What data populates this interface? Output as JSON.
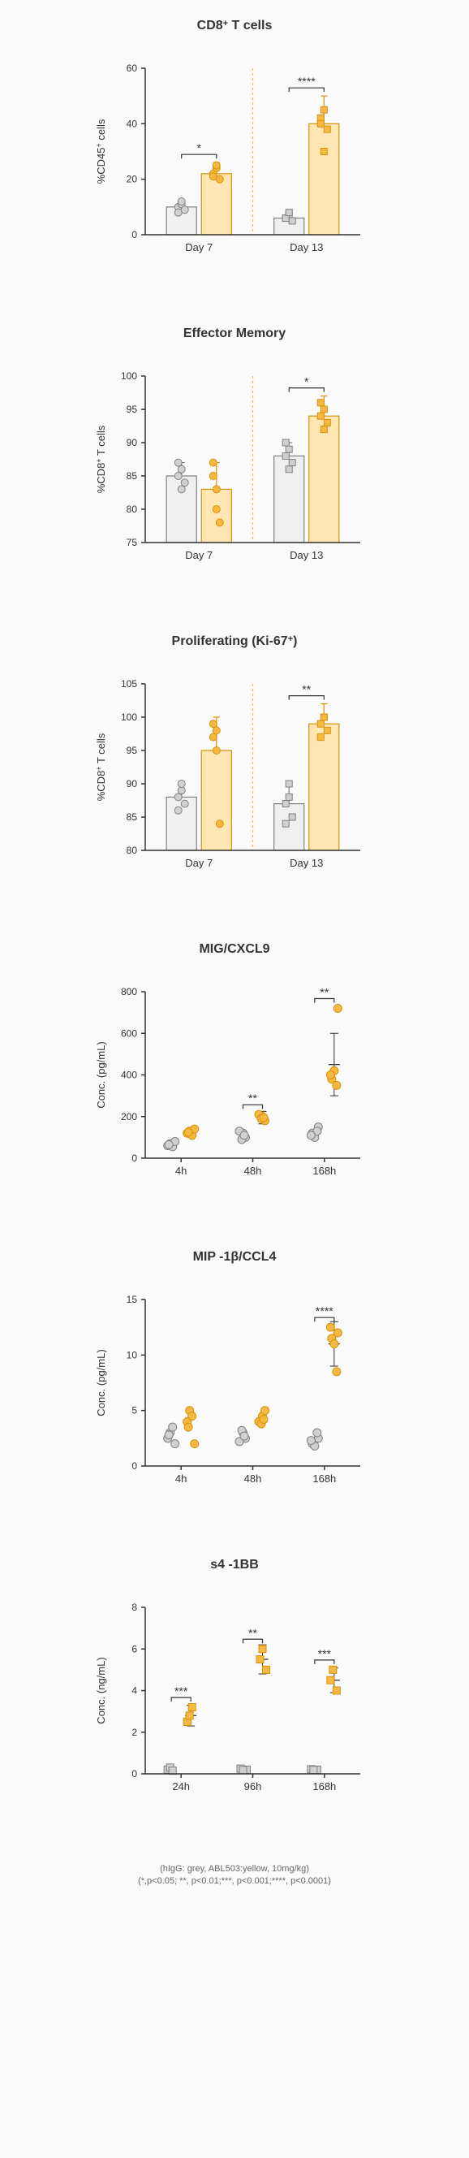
{
  "colors": {
    "grey_fill": "#d0d0d0",
    "grey_stroke": "#808080",
    "yellow_fill": "#f5b942",
    "yellow_stroke": "#d9920a",
    "yellow_fill_light": "#ffe6b3",
    "axis": "#333333",
    "sep_line": "#f5b942",
    "text": "#333333",
    "grid": "#cccccc",
    "bar_stroke_grey": "#808080",
    "bar_stroke_yellow": "#d9920a"
  },
  "caption_line1": "(hIgG: grey, ABL503:yellow, 10mg/kg)",
  "caption_line2": "(*,p<0.05; **, p<0.01;***, p<0.001;****, p<0.0001)",
  "charts": [
    {
      "id": "cd8",
      "type": "grouped-bar-scatter",
      "title_html": "CD8<tspan baseline-shift='4' font-size='11'>+</tspan> T cells",
      "ylabel_html": "%CD45<tspan baseline-shift='4' font-size='9'>+</tspan> cells",
      "ylim": [
        0,
        60
      ],
      "ytick_step": 20,
      "categories": [
        "Day 7",
        "Day 13"
      ],
      "bar_means": {
        "grey": [
          10,
          6
        ],
        "yellow": [
          22,
          40
        ]
      },
      "bar_err": {
        "grey": [
          2,
          2
        ],
        "yellow": [
          4,
          10
        ]
      },
      "points": {
        "grey_circles": [
          [
            0,
            10
          ],
          [
            0,
            11
          ],
          [
            0,
            9
          ],
          [
            0,
            8
          ],
          [
            0,
            12
          ]
        ],
        "yellow_circles": [
          [
            0,
            22
          ],
          [
            0,
            24
          ],
          [
            0,
            20
          ],
          [
            0,
            21
          ],
          [
            0,
            25
          ]
        ],
        "grey_squares": [
          [
            1,
            6
          ],
          [
            1,
            7
          ],
          [
            1,
            5
          ],
          [
            1,
            6
          ],
          [
            1,
            8
          ]
        ],
        "yellow_squares": [
          [
            1,
            42
          ],
          [
            1,
            45
          ],
          [
            1,
            38
          ],
          [
            1,
            40
          ],
          [
            1,
            30
          ]
        ]
      },
      "sigs": [
        {
          "cat": 0,
          "label": "*"
        },
        {
          "cat": 1,
          "label": "****"
        }
      ],
      "sep": true
    },
    {
      "id": "effmem",
      "type": "grouped-bar-scatter",
      "title": "Effector Memory",
      "ylabel_html": "%CD8<tspan baseline-shift='4' font-size='9'>+</tspan> T cells",
      "ylim": [
        75,
        100
      ],
      "ytick_step": 5,
      "categories": [
        "Day 7",
        "Day 13"
      ],
      "bar_means": {
        "grey": [
          85,
          88
        ],
        "yellow": [
          83,
          94
        ]
      },
      "bar_err": {
        "grey": [
          2,
          2
        ],
        "yellow": [
          4,
          3
        ]
      },
      "points": {
        "grey_circles": [
          [
            0,
            85
          ],
          [
            0,
            86
          ],
          [
            0,
            84
          ],
          [
            0,
            87
          ],
          [
            0,
            83
          ]
        ],
        "yellow_circles": [
          [
            0,
            85
          ],
          [
            0,
            80
          ],
          [
            0,
            78
          ],
          [
            0,
            87
          ],
          [
            0,
            83
          ]
        ],
        "grey_squares": [
          [
            1,
            88
          ],
          [
            1,
            89
          ],
          [
            1,
            87
          ],
          [
            1,
            90
          ],
          [
            1,
            86
          ]
        ],
        "yellow_squares": [
          [
            1,
            94
          ],
          [
            1,
            95
          ],
          [
            1,
            93
          ],
          [
            1,
            96
          ],
          [
            1,
            92
          ]
        ]
      },
      "sigs": [
        {
          "cat": 1,
          "label": "*"
        }
      ],
      "sep": true
    },
    {
      "id": "ki67",
      "type": "grouped-bar-scatter",
      "title_html": "Proliferating (Ki-67<tspan baseline-shift='4' font-size='11'>+</tspan>)",
      "ylabel_html": "%CD8<tspan baseline-shift='4' font-size='9'>+</tspan> T cells",
      "ylim": [
        80,
        105
      ],
      "ytick_step": 5,
      "categories": [
        "Day 7",
        "Day 13"
      ],
      "bar_means": {
        "grey": [
          88,
          87
        ],
        "yellow": [
          95,
          99
        ]
      },
      "bar_err": {
        "grey": [
          2,
          3
        ],
        "yellow": [
          5,
          3
        ]
      },
      "points": {
        "grey_circles": [
          [
            0,
            88
          ],
          [
            0,
            89
          ],
          [
            0,
            87
          ],
          [
            0,
            86
          ],
          [
            0,
            90
          ]
        ],
        "yellow_circles": [
          [
            0,
            97
          ],
          [
            0,
            95
          ],
          [
            0,
            84
          ],
          [
            0,
            99
          ],
          [
            0,
            98
          ]
        ],
        "grey_squares": [
          [
            1,
            87
          ],
          [
            1,
            88
          ],
          [
            1,
            85
          ],
          [
            1,
            84
          ],
          [
            1,
            90
          ]
        ],
        "yellow_squares": [
          [
            1,
            99
          ],
          [
            1,
            100
          ],
          [
            1,
            98
          ],
          [
            1,
            97
          ],
          [
            1,
            100
          ]
        ]
      },
      "sigs": [
        {
          "cat": 1,
          "label": "**"
        }
      ],
      "sep": true
    },
    {
      "id": "mig",
      "type": "scatter-grouped",
      "title": "MIG/CXCL9",
      "ylabel": "Conc. (pg/mL)",
      "ylim": [
        0,
        800
      ],
      "ytick_step": 200,
      "categories": [
        "4h",
        "48h",
        "168h"
      ],
      "points": {
        "grey": [
          [
            0,
            60
          ],
          [
            0,
            70
          ],
          [
            0,
            55
          ],
          [
            0,
            80
          ],
          [
            0,
            65
          ],
          [
            1,
            120
          ],
          [
            1,
            100
          ],
          [
            1,
            130
          ],
          [
            1,
            90
          ],
          [
            1,
            110
          ],
          [
            2,
            150
          ],
          [
            2,
            120
          ],
          [
            2,
            100
          ],
          [
            2,
            130
          ],
          [
            2,
            110
          ]
        ],
        "yellow": [
          [
            0,
            120
          ],
          [
            0,
            130
          ],
          [
            0,
            110
          ],
          [
            0,
            140
          ],
          [
            0,
            125
          ],
          [
            1,
            200
          ],
          [
            1,
            180
          ],
          [
            1,
            210
          ],
          [
            1,
            190
          ],
          [
            1,
            195
          ],
          [
            2,
            720
          ],
          [
            2,
            380
          ],
          [
            2,
            420
          ],
          [
            2,
            350
          ],
          [
            2,
            400
          ]
        ]
      },
      "err_yellow": [
        [
          1,
          195,
          30
        ],
        [
          2,
          450,
          150
        ]
      ],
      "sigs": [
        {
          "cat": 1,
          "label": "**"
        },
        {
          "cat": 2,
          "label": "**"
        }
      ]
    },
    {
      "id": "mip",
      "type": "scatter-grouped",
      "title": "MIP -1β/CCL4",
      "ylabel": "Conc. (pg/mL)",
      "ylim": [
        0,
        15
      ],
      "ytick_step": 5,
      "categories": [
        "4h",
        "48h",
        "168h"
      ],
      "points": {
        "grey": [
          [
            0,
            2.5
          ],
          [
            0,
            3
          ],
          [
            0,
            3.5
          ],
          [
            0,
            2
          ],
          [
            0,
            2.8
          ],
          [
            1,
            3
          ],
          [
            1,
            2.5
          ],
          [
            1,
            2.2
          ],
          [
            1,
            3.2
          ],
          [
            1,
            2.7
          ],
          [
            2,
            2.5
          ],
          [
            2,
            2
          ],
          [
            2,
            1.8
          ],
          [
            2,
            3
          ],
          [
            2,
            2.3
          ]
        ],
        "yellow": [
          [
            0,
            4
          ],
          [
            0,
            5
          ],
          [
            0,
            4.5
          ],
          [
            0,
            2
          ],
          [
            0,
            3.5
          ],
          [
            1,
            4.5
          ],
          [
            1,
            5
          ],
          [
            1,
            4
          ],
          [
            1,
            3.8
          ],
          [
            1,
            4.2
          ],
          [
            2,
            12
          ],
          [
            2,
            11.5
          ],
          [
            2,
            11
          ],
          [
            2,
            8.5
          ],
          [
            2,
            12.5
          ]
        ]
      },
      "err_yellow": [
        [
          2,
          11,
          2
        ]
      ],
      "sigs": [
        {
          "cat": 2,
          "label": "****"
        }
      ]
    },
    {
      "id": "s41bb",
      "type": "scatter-grouped",
      "title": "s4 -1BB",
      "ylabel": "Conc. (ng/mL)",
      "ylim": [
        0,
        8
      ],
      "ytick_step": 2,
      "categories": [
        "24h",
        "96h",
        "168h"
      ],
      "points": {
        "grey_sq": [
          [
            0,
            0.2
          ],
          [
            0,
            0.3
          ],
          [
            0,
            0.15
          ],
          [
            1,
            0.2
          ],
          [
            1,
            0.25
          ],
          [
            1,
            0.18
          ],
          [
            2,
            0.2
          ],
          [
            2,
            0.22
          ],
          [
            2,
            0.19
          ]
        ],
        "yellow_sq": [
          [
            0,
            2.5
          ],
          [
            0,
            2.8
          ],
          [
            0,
            3.2
          ],
          [
            1,
            5
          ],
          [
            1,
            5.5
          ],
          [
            1,
            6
          ],
          [
            2,
            4
          ],
          [
            2,
            4.5
          ],
          [
            2,
            5
          ]
        ]
      },
      "err_yellow": [
        [
          0,
          2.8,
          0.5
        ],
        [
          1,
          5.5,
          0.7
        ],
        [
          2,
          4.5,
          0.6
        ]
      ],
      "sigs": [
        {
          "cat": 0,
          "label": "***"
        },
        {
          "cat": 1,
          "label": "**"
        },
        {
          "cat": 2,
          "label": "***"
        }
      ]
    }
  ]
}
